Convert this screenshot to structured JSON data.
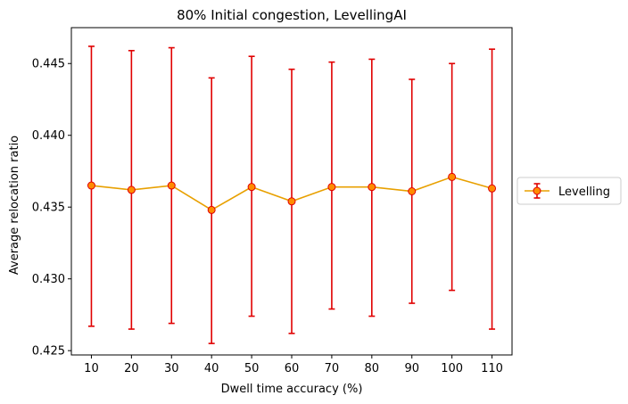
{
  "chart_data": {
    "type": "line",
    "title": "80% Initial congestion, LevellingAI",
    "xlabel": "Dwell time accuracy (%)",
    "ylabel": "Average relocation ratio",
    "x": [
      10,
      20,
      30,
      40,
      50,
      60,
      70,
      80,
      90,
      100,
      110
    ],
    "x_ticks": [
      "10",
      "20",
      "30",
      "40",
      "50",
      "60",
      "70",
      "80",
      "90",
      "100",
      "110"
    ],
    "y_ticks": [
      "0.425",
      "0.430",
      "0.435",
      "0.440",
      "0.445"
    ],
    "y_tick_values": [
      0.425,
      0.43,
      0.435,
      0.44,
      0.445
    ],
    "ylim": [
      0.4247,
      0.4475
    ],
    "xlim": [
      5,
      115
    ],
    "grid": false,
    "legend_position": "outside-right",
    "series": [
      {
        "name": "Levelling",
        "line_color": "#e8a000",
        "marker_face": "#ff8c00",
        "marker_edge": "#e00000",
        "error_color": "#e00000",
        "values": [
          0.4365,
          0.4362,
          0.4365,
          0.4348,
          0.4364,
          0.4354,
          0.4364,
          0.4364,
          0.4361,
          0.4371,
          0.4363
        ],
        "err_low": [
          0.4267,
          0.4265,
          0.4269,
          0.4255,
          0.4274,
          0.4262,
          0.4279,
          0.4274,
          0.4283,
          0.4292,
          0.4265
        ],
        "err_high": [
          0.4462,
          0.4459,
          0.4461,
          0.444,
          0.4455,
          0.4446,
          0.4451,
          0.4453,
          0.4439,
          0.445,
          0.446
        ]
      }
    ]
  }
}
